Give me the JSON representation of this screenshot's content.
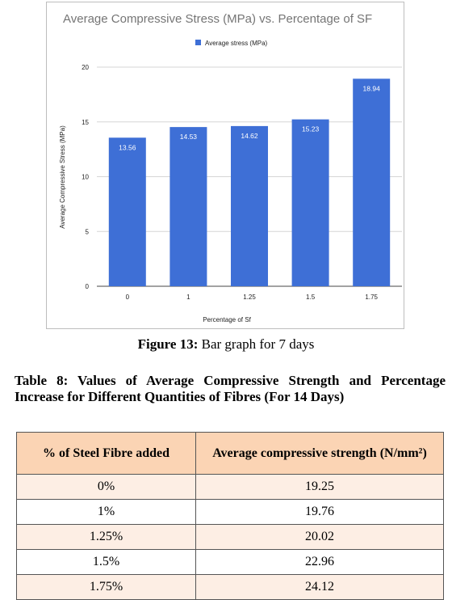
{
  "chart_data": {
    "type": "bar",
    "title": "Average Compressive Stress (MPa) vs. Percentage of SF",
    "categories": [
      "0",
      "1",
      "1.25",
      "1.5",
      "1.75"
    ],
    "series": [
      {
        "name": "Average stress (MPa)",
        "values": [
          13.56,
          14.53,
          14.62,
          15.23,
          18.94
        ]
      }
    ],
    "data_labels": [
      "13.56",
      "14.53",
      "14.62",
      "15.23",
      "18.94"
    ],
    "xlabel": "Percentage of Sf",
    "ylabel": "Average Compressive Stress (MPa)",
    "ylim": [
      0,
      20
    ],
    "yticks": [
      "0",
      "5",
      "10",
      "15",
      "20"
    ],
    "grid": true,
    "legend_position": "top",
    "bar_color": "#3e6fd6"
  },
  "figure_caption": {
    "label": "Figure 13:",
    "text": " Bar graph for 7 days"
  },
  "table": {
    "title": "Table 8: Values of Average Compressive Strength and Percentage Increase for Different Quantities of  Fibres (For 14 Days)",
    "headers": [
      "% of Steel Fibre added",
      "Average compressive strength (N/mm²)"
    ],
    "rows": [
      [
        "0%",
        "19.25"
      ],
      [
        "1%",
        "19.76"
      ],
      [
        "1.25%",
        "20.02"
      ],
      [
        "1.5%",
        "22.96"
      ],
      [
        "1.75%",
        "24.12"
      ]
    ],
    "header_color": "#fbd4b4",
    "stripe_color": "#fdeee4"
  }
}
